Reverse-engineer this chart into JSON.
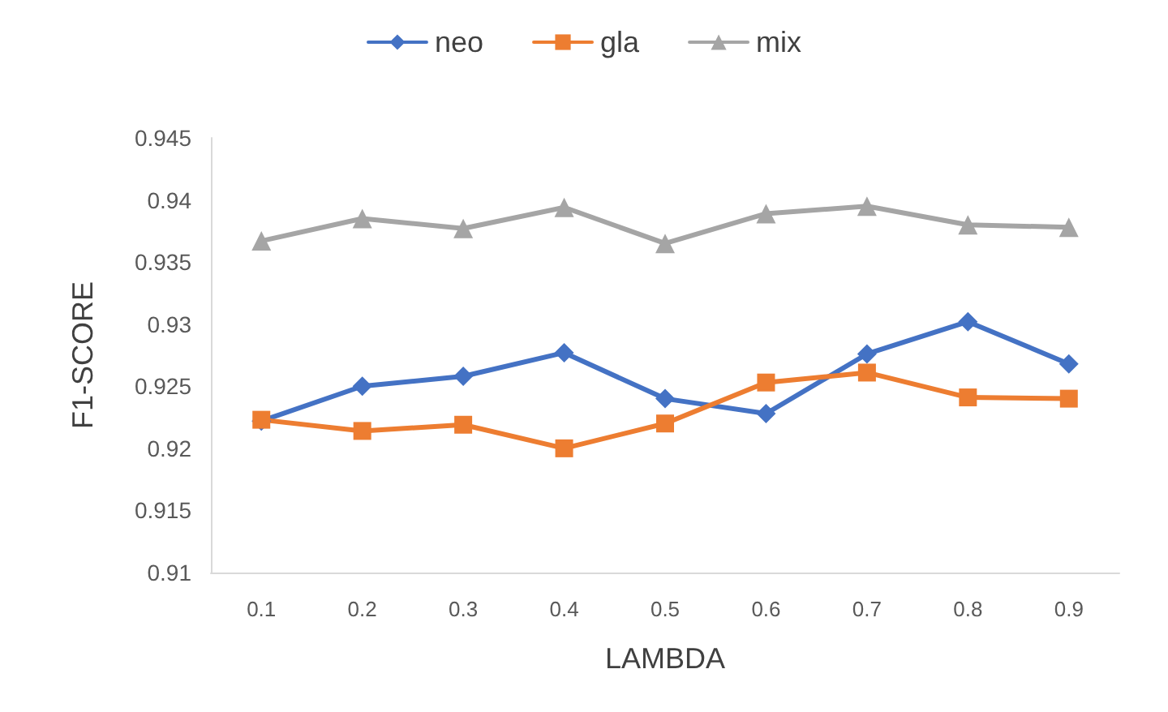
{
  "chart_data": {
    "type": "line",
    "xlabel": "LAMBDA",
    "ylabel": "F1-SCORE",
    "categories": [
      "0.1",
      "0.2",
      "0.3",
      "0.4",
      "0.5",
      "0.6",
      "0.7",
      "0.8",
      "0.9"
    ],
    "series": [
      {
        "name": "neo",
        "color": "#4472c4",
        "marker": "diamond",
        "values": [
          0.9222,
          0.925,
          0.9258,
          0.9277,
          0.924,
          0.9228,
          0.9276,
          0.9302,
          0.9268
        ]
      },
      {
        "name": "gla",
        "color": "#ed7d31",
        "marker": "square",
        "values": [
          0.9223,
          0.9214,
          0.9219,
          0.92,
          0.922,
          0.9253,
          0.9261,
          0.9241,
          0.924
        ]
      },
      {
        "name": "mix",
        "color": "#a5a5a5",
        "marker": "triangle",
        "values": [
          0.9367,
          0.9385,
          0.9377,
          0.9394,
          0.9365,
          0.9389,
          0.9395,
          0.938,
          0.9378
        ]
      }
    ],
    "ylim": [
      0.91,
      0.945
    ],
    "yticks": [
      0.91,
      0.915,
      0.92,
      0.925,
      0.93,
      0.935,
      0.94,
      0.945
    ],
    "grid": false,
    "legend": "top",
    "line_style": "solid"
  }
}
